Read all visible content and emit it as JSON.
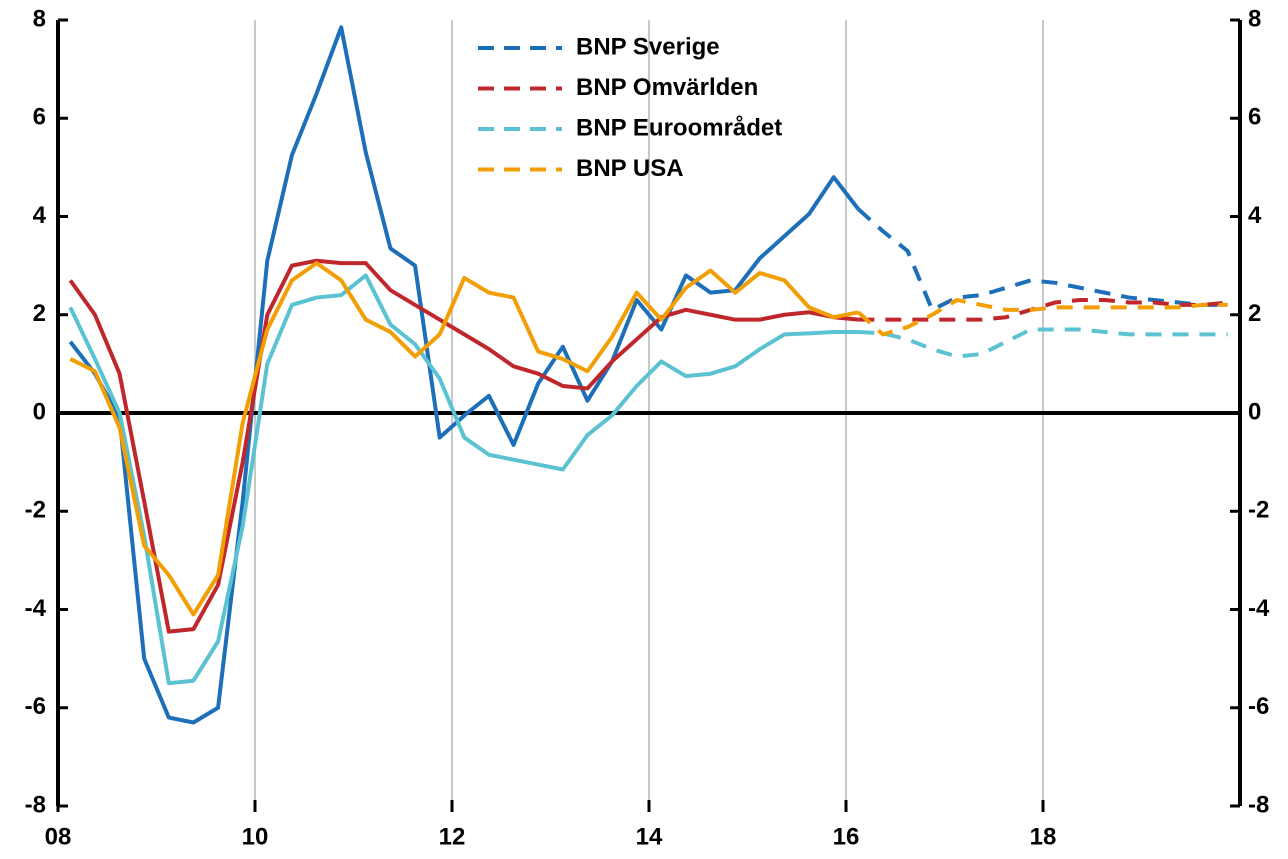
{
  "chart_data": {
    "type": "line",
    "x": [
      2008.125,
      2008.375,
      2008.625,
      2008.875,
      2009.125,
      2009.375,
      2009.625,
      2009.875,
      2010.125,
      2010.375,
      2010.625,
      2010.875,
      2011.125,
      2011.375,
      2011.625,
      2011.875,
      2012.125,
      2012.375,
      2012.625,
      2012.875,
      2013.125,
      2013.375,
      2013.625,
      2013.875,
      2014.125,
      2014.375,
      2014.625,
      2014.875,
      2015.125,
      2015.375,
      2015.625,
      2015.875,
      2016.125,
      2016.375,
      2016.625,
      2016.875,
      2017.125,
      2017.375,
      2017.625,
      2017.875,
      2018.125,
      2018.375,
      2018.625,
      2018.875,
      2019.125,
      2019.375,
      2019.625,
      2019.875
    ],
    "forecast_from": 2016.125,
    "series": [
      {
        "name": "BNP Sverige",
        "color": "#1c6fb8",
        "values": [
          1.45,
          0.8,
          -0.1,
          -5.0,
          -6.2,
          -6.3,
          -6.0,
          -1.8,
          3.1,
          5.25,
          6.5,
          7.85,
          5.3,
          3.35,
          3.0,
          -0.5,
          -0.05,
          0.35,
          -0.65,
          0.6,
          1.35,
          0.25,
          1.05,
          2.3,
          1.7,
          2.8,
          2.45,
          2.5,
          3.15,
          3.6,
          4.05,
          4.8,
          4.15,
          3.7,
          3.3,
          2.1,
          2.35,
          2.4,
          2.55,
          2.7,
          2.65,
          2.55,
          2.45,
          2.35,
          2.3,
          2.25,
          2.2,
          2.2
        ]
      },
      {
        "name": "BNP Omvärlden",
        "color": "#c0272d",
        "values": [
          2.7,
          2.0,
          0.8,
          -1.8,
          -4.45,
          -4.4,
          -3.5,
          -1.0,
          2.0,
          3.0,
          3.1,
          3.05,
          3.05,
          2.5,
          2.2,
          1.9,
          1.6,
          1.3,
          0.95,
          0.8,
          0.55,
          0.5,
          1.05,
          1.5,
          1.95,
          2.1,
          2.0,
          1.9,
          1.9,
          2.0,
          2.05,
          1.95,
          1.9,
          1.9,
          1.9,
          1.9,
          1.9,
          1.9,
          1.95,
          2.1,
          2.25,
          2.3,
          2.3,
          2.25,
          2.25,
          2.2,
          2.2,
          2.25
        ]
      },
      {
        "name": "BNP Euroområdet",
        "color": "#5bc2d2",
        "values": [
          2.15,
          1.1,
          0.0,
          -2.5,
          -5.5,
          -5.45,
          -4.65,
          -2.3,
          1.0,
          2.2,
          2.35,
          2.4,
          2.8,
          1.8,
          1.4,
          0.7,
          -0.5,
          -0.85,
          -0.95,
          -1.05,
          -1.15,
          -0.45,
          -0.05,
          0.55,
          1.05,
          0.75,
          0.8,
          0.95,
          1.3,
          1.6,
          1.62,
          1.65,
          1.65,
          1.62,
          1.5,
          1.3,
          1.15,
          1.2,
          1.45,
          1.7,
          1.7,
          1.7,
          1.65,
          1.6,
          1.6,
          1.6,
          1.6,
          1.6
        ]
      },
      {
        "name": "BNP USA",
        "color": "#f29f05",
        "values": [
          1.1,
          0.85,
          -0.3,
          -2.7,
          -3.3,
          -4.1,
          -3.3,
          -0.2,
          1.7,
          2.7,
          3.05,
          2.7,
          1.9,
          1.65,
          1.15,
          1.6,
          2.75,
          2.45,
          2.35,
          1.25,
          1.1,
          0.85,
          1.55,
          2.45,
          1.9,
          2.55,
          2.9,
          2.45,
          2.85,
          2.7,
          2.15,
          1.95,
          2.05,
          1.6,
          1.75,
          2.0,
          2.3,
          2.2,
          2.1,
          2.1,
          2.15,
          2.15,
          2.15,
          2.15,
          2.15,
          2.15,
          2.2,
          2.2
        ]
      }
    ],
    "xlim": [
      2008,
      2020
    ],
    "xticks": [
      {
        "value": 2008,
        "label": "08"
      },
      2010,
      {
        "value": 2010,
        "label": "10"
      },
      {
        "value": 2012,
        "label": "12"
      },
      {
        "value": 2014,
        "label": "14"
      },
      {
        "value": 2016,
        "label": "16"
      },
      {
        "value": 2018,
        "label": "18"
      }
    ],
    "ylim": [
      -8,
      8
    ],
    "yticks": [
      -8,
      -6,
      -4,
      -2,
      0,
      2,
      4,
      6,
      8
    ],
    "y2lim": [
      -8,
      8
    ],
    "y2ticks": [
      -8,
      -6,
      -4,
      -2,
      0,
      2,
      4,
      6,
      8
    ],
    "grid": true,
    "legend": "top"
  }
}
